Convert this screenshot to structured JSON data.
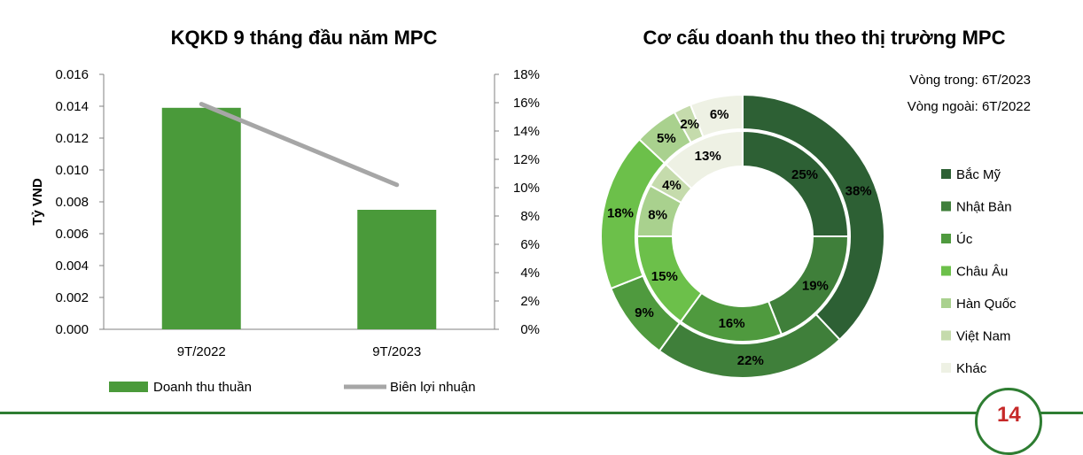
{
  "page_number": "14",
  "chart_data": [
    {
      "type": "bar",
      "title": "KQKD 9 tháng đầu năm MPC",
      "categories": [
        "9T/2022",
        "9T/2023"
      ],
      "ylabel": "Tỷ VND",
      "ylim": [
        0,
        0.016
      ],
      "y_ticks": [
        "0.000",
        "0.002",
        "0.004",
        "0.006",
        "0.008",
        "0.010",
        "0.012",
        "0.014",
        "0.016"
      ],
      "y2lim": [
        0,
        18
      ],
      "y2_ticks": [
        "0%",
        "2%",
        "4%",
        "6%",
        "8%",
        "10%",
        "12%",
        "14%",
        "16%",
        "18%"
      ],
      "series": [
        {
          "name": "Doanh thu thuần",
          "kind": "bar",
          "axis": "left",
          "color": "#4a9a3a",
          "values": [
            0.0139,
            0.0075
          ]
        },
        {
          "name": "Biên lợi nhuận",
          "kind": "line",
          "axis": "right",
          "color": "#a6a6a6",
          "values": [
            15.9,
            10.2
          ]
        }
      ],
      "grid": false,
      "legend_position": "bottom"
    },
    {
      "type": "pie",
      "variant": "double-donut",
      "title": "Cơ cấu doanh thu theo thị trường MPC",
      "notes": [
        "Vòng trong: 6T/2023",
        "Vòng ngoài: 6T/2022"
      ],
      "categories": [
        "Bắc Mỹ",
        "Nhật Bản",
        "Úc",
        "Châu Âu",
        "Hàn Quốc",
        "Việt Nam",
        "Khác"
      ],
      "colors": [
        "#2d6034",
        "#3f7f3a",
        "#4f9a3e",
        "#6cc04a",
        "#a9d18e",
        "#c5dbac",
        "#eef1e4"
      ],
      "inner_ring": {
        "name": "Vòng trong",
        "values": [
          25,
          19,
          16,
          15,
          8,
          4,
          13
        ]
      },
      "outer_ring": {
        "name": "Vòng ngoài",
        "values": [
          38,
          22,
          9,
          18,
          5,
          2,
          6
        ]
      },
      "legend_position": "right"
    }
  ]
}
